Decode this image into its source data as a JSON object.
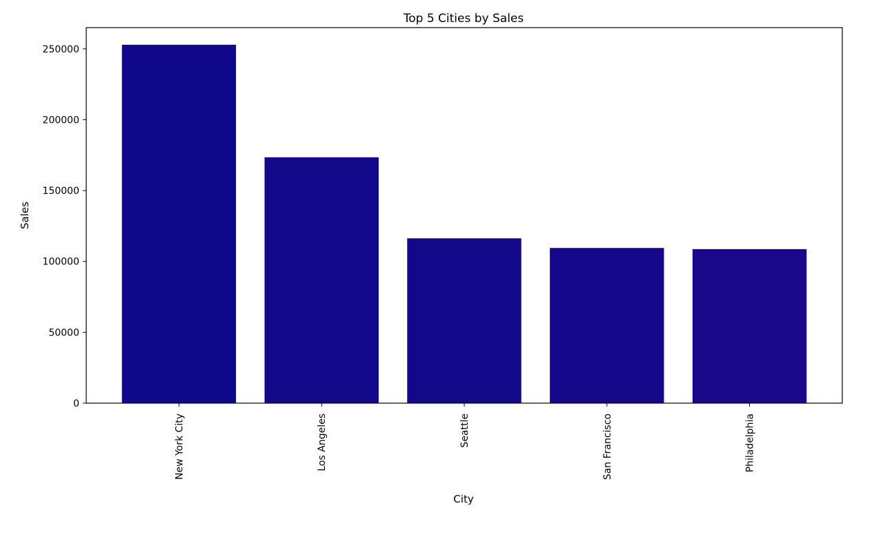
{
  "chart_data": {
    "type": "bar",
    "title": "Top 5 Cities by Sales",
    "xlabel": "City",
    "ylabel": "Sales",
    "categories": [
      "New York City",
      "Los Angeles",
      "Seattle",
      "San Francisco",
      "Philadelphia"
    ],
    "values": [
      252900,
      173500,
      116300,
      109500,
      108700
    ],
    "colors": [
      "#10088a",
      "#11088a",
      "#14088a",
      "#15088a",
      "#19088a"
    ],
    "ylim": [
      0,
      265000
    ],
    "yticks": [
      0,
      50000,
      100000,
      150000,
      200000,
      250000
    ],
    "ytick_labels": [
      "0",
      "50000",
      "100000",
      "150000",
      "200000",
      "250000"
    ],
    "grid": false,
    "legend": "none"
  }
}
